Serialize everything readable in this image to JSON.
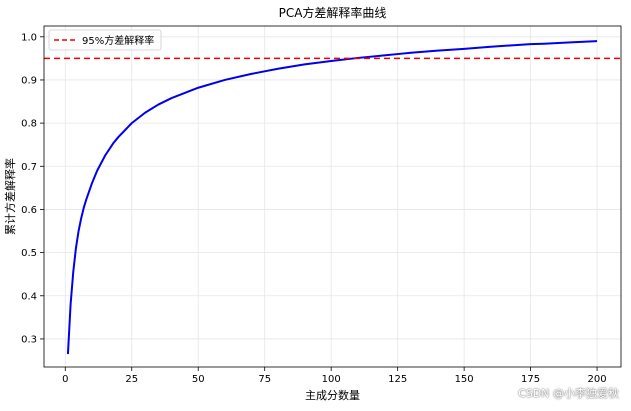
{
  "chart_data": {
    "type": "line",
    "title": "PCA方差解释率曲线",
    "xlabel": "主成分数量",
    "ylabel": "累计方差解释率",
    "xlim": [
      -8,
      209
    ],
    "ylim": [
      0.235,
      1.025
    ],
    "xticks": [
      0,
      25,
      50,
      75,
      100,
      125,
      150,
      175,
      200
    ],
    "yticks": [
      0.3,
      0.4,
      0.5,
      0.6,
      0.7,
      0.8,
      0.9,
      1.0
    ],
    "ytick_labels": [
      "0.3",
      "0.4",
      "0.5",
      "0.6",
      "0.7",
      "0.8",
      "0.9",
      "1.0"
    ],
    "grid": true,
    "legend_position": "top-left",
    "series": [
      {
        "color": "#0000ee",
        "x": [
          1,
          2,
          3,
          4,
          5,
          6,
          7,
          8,
          10,
          12,
          15,
          18,
          20,
          25,
          30,
          35,
          40,
          50,
          60,
          70,
          75,
          80,
          90,
          100,
          110,
          120,
          125,
          130,
          140,
          150,
          160,
          170,
          175,
          180,
          190,
          200
        ],
        "values": [
          0.265,
          0.38,
          0.455,
          0.51,
          0.55,
          0.58,
          0.605,
          0.625,
          0.66,
          0.69,
          0.725,
          0.753,
          0.768,
          0.8,
          0.824,
          0.843,
          0.858,
          0.882,
          0.9,
          0.914,
          0.92,
          0.926,
          0.936,
          0.944,
          0.951,
          0.957,
          0.96,
          0.963,
          0.968,
          0.972,
          0.977,
          0.981,
          0.983,
          0.984,
          0.987,
          0.99
        ]
      }
    ],
    "reference_line": {
      "label": "95%方差解释率",
      "y": 0.95,
      "color": "#ee0000",
      "style": "dashed"
    }
  },
  "watermark": "CSDN @小李独爱秋"
}
